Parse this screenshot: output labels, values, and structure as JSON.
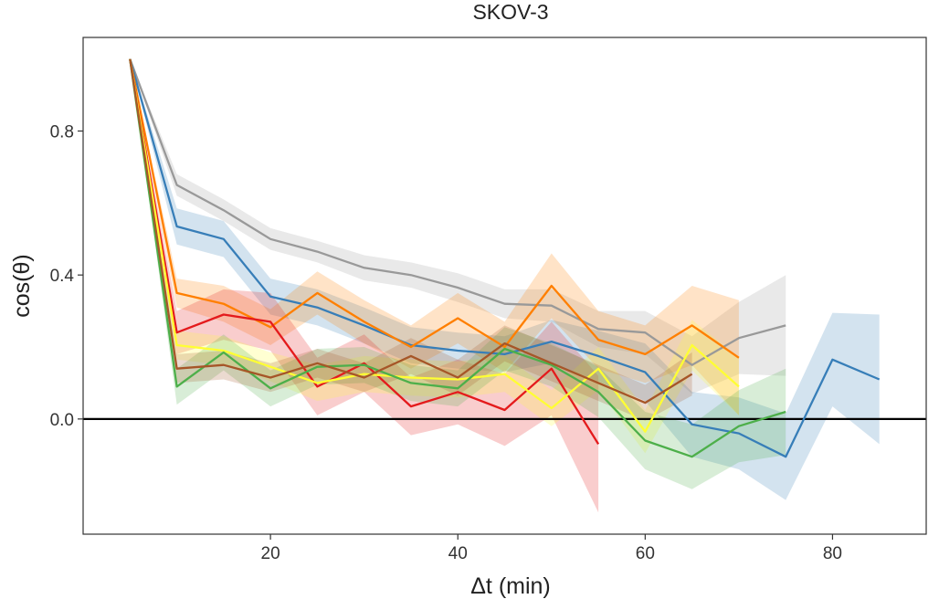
{
  "chart_data": {
    "type": "line",
    "title": "SKOV-3",
    "xlabel": "Δt (min)",
    "ylabel": "cos(θ)",
    "xlim": [
      0,
      90
    ],
    "ylim": [
      -0.32,
      1.06
    ],
    "x_ticks": [
      20,
      40,
      60,
      80
    ],
    "y_ticks": [
      0.0,
      0.4,
      0.8
    ],
    "y_tick_labels": [
      "0.0",
      "0.4",
      "0.8"
    ],
    "reference_line_y": 0,
    "grid": false,
    "legend": "none",
    "series": [
      {
        "color": "#999999",
        "x": [
          5,
          10,
          15,
          20,
          25,
          30,
          35,
          40,
          45,
          50,
          55,
          60,
          65,
          70,
          75
        ],
        "values": [
          1.0,
          0.65,
          0.58,
          0.5,
          0.465,
          0.42,
          0.4,
          0.365,
          0.32,
          0.315,
          0.25,
          0.24,
          0.15,
          0.225,
          0.26
        ],
        "ci_halfwidth": [
          0.0,
          0.03,
          0.03,
          0.03,
          0.03,
          0.035,
          0.035,
          0.04,
          0.04,
          0.045,
          0.05,
          0.06,
          0.08,
          0.1,
          0.14
        ]
      },
      {
        "color": "#377EB8",
        "x": [
          5,
          10,
          15,
          20,
          25,
          30,
          35,
          40,
          45,
          50,
          55,
          60,
          65,
          70,
          75,
          80,
          85
        ],
        "values": [
          1.0,
          0.535,
          0.5,
          0.34,
          0.31,
          0.26,
          0.205,
          0.19,
          0.18,
          0.215,
          0.175,
          0.13,
          -0.015,
          -0.04,
          -0.105,
          0.165,
          0.11
        ],
        "ci_halfwidth": [
          0.0,
          0.05,
          0.05,
          0.05,
          0.05,
          0.05,
          0.05,
          0.05,
          0.05,
          0.06,
          0.07,
          0.08,
          0.09,
          0.1,
          0.12,
          0.13,
          0.18
        ]
      },
      {
        "color": "#FF7F00",
        "x": [
          5,
          10,
          15,
          20,
          25,
          30,
          35,
          40,
          45,
          50,
          55,
          60,
          65,
          70
        ],
        "values": [
          1.0,
          0.35,
          0.32,
          0.255,
          0.35,
          0.27,
          0.2,
          0.28,
          0.2,
          0.37,
          0.22,
          0.18,
          0.26,
          0.17
        ],
        "ci_halfwidth": [
          0.0,
          0.04,
          0.05,
          0.05,
          0.06,
          0.06,
          0.06,
          0.07,
          0.07,
          0.09,
          0.08,
          0.08,
          0.11,
          0.16
        ]
      },
      {
        "color": "#E41A1C",
        "x": [
          5,
          10,
          15,
          20,
          25,
          30,
          35,
          40,
          45,
          50,
          55
        ],
        "values": [
          1.0,
          0.24,
          0.29,
          0.27,
          0.09,
          0.155,
          0.035,
          0.075,
          0.025,
          0.14,
          -0.07
        ],
        "ci_halfwidth": [
          0.0,
          0.06,
          0.07,
          0.08,
          0.08,
          0.08,
          0.08,
          0.09,
          0.1,
          0.13,
          0.19
        ]
      },
      {
        "color": "#FFFF33",
        "x": [
          5,
          10,
          15,
          20,
          25,
          30,
          35,
          40,
          45,
          50,
          55,
          60,
          65,
          70
        ],
        "values": [
          1.0,
          0.205,
          0.19,
          0.145,
          0.1,
          0.125,
          0.115,
          0.11,
          0.125,
          0.03,
          0.14,
          -0.035,
          0.205,
          0.09
        ],
        "ci_halfwidth": [
          0.0,
          0.04,
          0.04,
          0.04,
          0.05,
          0.05,
          0.05,
          0.05,
          0.05,
          0.05,
          0.06,
          0.06,
          0.07,
          0.08
        ]
      },
      {
        "color": "#4DAF4A",
        "x": [
          5,
          10,
          15,
          20,
          25,
          30,
          35,
          40,
          45,
          50,
          55,
          60,
          65,
          70,
          75
        ],
        "values": [
          1.0,
          0.09,
          0.185,
          0.085,
          0.145,
          0.15,
          0.1,
          0.085,
          0.195,
          0.15,
          0.075,
          -0.06,
          -0.105,
          -0.02,
          0.02
        ],
        "ci_halfwidth": [
          0.0,
          0.05,
          0.05,
          0.05,
          0.05,
          0.05,
          0.05,
          0.05,
          0.06,
          0.06,
          0.07,
          0.08,
          0.09,
          0.1,
          0.12
        ]
      },
      {
        "color": "#A65628",
        "x": [
          5,
          10,
          15,
          20,
          25,
          30,
          35,
          40,
          45,
          50,
          55,
          60,
          65
        ],
        "values": [
          1.0,
          0.14,
          0.15,
          0.115,
          0.155,
          0.115,
          0.175,
          0.115,
          0.21,
          0.155,
          0.1,
          0.045,
          0.125
        ],
        "ci_halfwidth": [
          0.0,
          0.04,
          0.04,
          0.04,
          0.04,
          0.04,
          0.05,
          0.05,
          0.05,
          0.05,
          0.05,
          0.05,
          0.06
        ]
      }
    ]
  }
}
